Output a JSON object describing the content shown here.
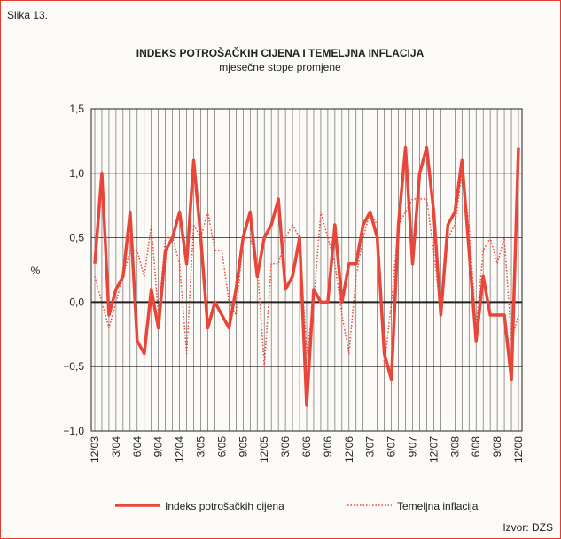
{
  "chart_data": {
    "type": "line",
    "figure_label": "Slika 13.",
    "title": "INDEKS POTROŠAČKIH CIJENA I TEMELJNA INFLACIJA",
    "subtitle": "mjesečne stope promjene",
    "y_label": "%",
    "source": "Izvor: DZS",
    "categories": [
      "12/03",
      null,
      null,
      "3/04",
      null,
      null,
      "6/04",
      null,
      null,
      "9/04",
      null,
      null,
      "12/04",
      null,
      null,
      "3/05",
      null,
      null,
      "6/05",
      null,
      null,
      "9/05",
      null,
      null,
      "12/05",
      null,
      null,
      "3/06",
      null,
      null,
      "6/06",
      null,
      null,
      "9/06",
      null,
      null,
      "12/06",
      null,
      null,
      "3/07",
      null,
      null,
      "6/07",
      null,
      null,
      "9/07",
      null,
      null,
      "12/07",
      null,
      null,
      "3/08",
      null,
      null,
      "6/08",
      null,
      null,
      "9/08",
      null,
      null,
      "12/08"
    ],
    "series": [
      {
        "name": "Indeks potrošačkih cijena",
        "color": "#e8463a",
        "style": "solid",
        "values": [
          0.3,
          1.0,
          -0.1,
          0.1,
          0.2,
          0.7,
          -0.3,
          -0.4,
          0.1,
          -0.2,
          0.4,
          0.5,
          0.7,
          0.3,
          1.1,
          0.5,
          -0.2,
          0.0,
          -0.1,
          -0.2,
          0.1,
          0.5,
          0.7,
          0.2,
          0.5,
          0.6,
          0.8,
          0.1,
          0.2,
          0.5,
          -0.8,
          0.1,
          0.0,
          0.0,
          0.6,
          0.0,
          0.3,
          0.3,
          0.6,
          0.7,
          0.5,
          -0.4,
          -0.6,
          0.6,
          1.2,
          0.3,
          1.0,
          1.2,
          0.7,
          -0.1,
          0.6,
          0.7,
          1.1,
          0.4,
          -0.3,
          0.2,
          -0.1,
          -0.1,
          -0.1,
          -0.6,
          1.2
        ]
      },
      {
        "name": "Temeljna inflacija",
        "color": "#e8463a",
        "style": "dotted",
        "values": [
          0.2,
          0.0,
          -0.2,
          0.0,
          0.2,
          0.4,
          0.4,
          0.2,
          0.6,
          -0.1,
          0.5,
          0.5,
          0.3,
          -0.4,
          0.6,
          0.5,
          0.7,
          0.4,
          0.4,
          0.0,
          -0.1,
          0.5,
          0.5,
          0.3,
          -0.5,
          0.3,
          0.3,
          0.5,
          0.6,
          0.5,
          -0.4,
          0.0,
          0.7,
          0.5,
          0.3,
          -0.1,
          -0.4,
          0.2,
          0.5,
          0.7,
          0.6,
          -0.5,
          0.0,
          0.6,
          0.7,
          0.8,
          0.8,
          0.8,
          0.4,
          -0.1,
          0.5,
          0.6,
          1.0,
          0.6,
          -0.2,
          0.4,
          0.5,
          0.3,
          0.5,
          -0.3,
          -0.1
        ]
      }
    ],
    "ylim": [
      -1.0,
      1.5
    ],
    "yticks": [
      {
        "value": -1.0,
        "label": "−1,0"
      },
      {
        "value": -0.5,
        "label": "−0,5"
      },
      {
        "value": 0,
        "label": "0,0"
      },
      {
        "value": 0.5,
        "label": "0,5"
      },
      {
        "value": 1.0,
        "label": "1,0"
      },
      {
        "value": 1.5,
        "label": "1,5"
      }
    ],
    "grid": true
  }
}
